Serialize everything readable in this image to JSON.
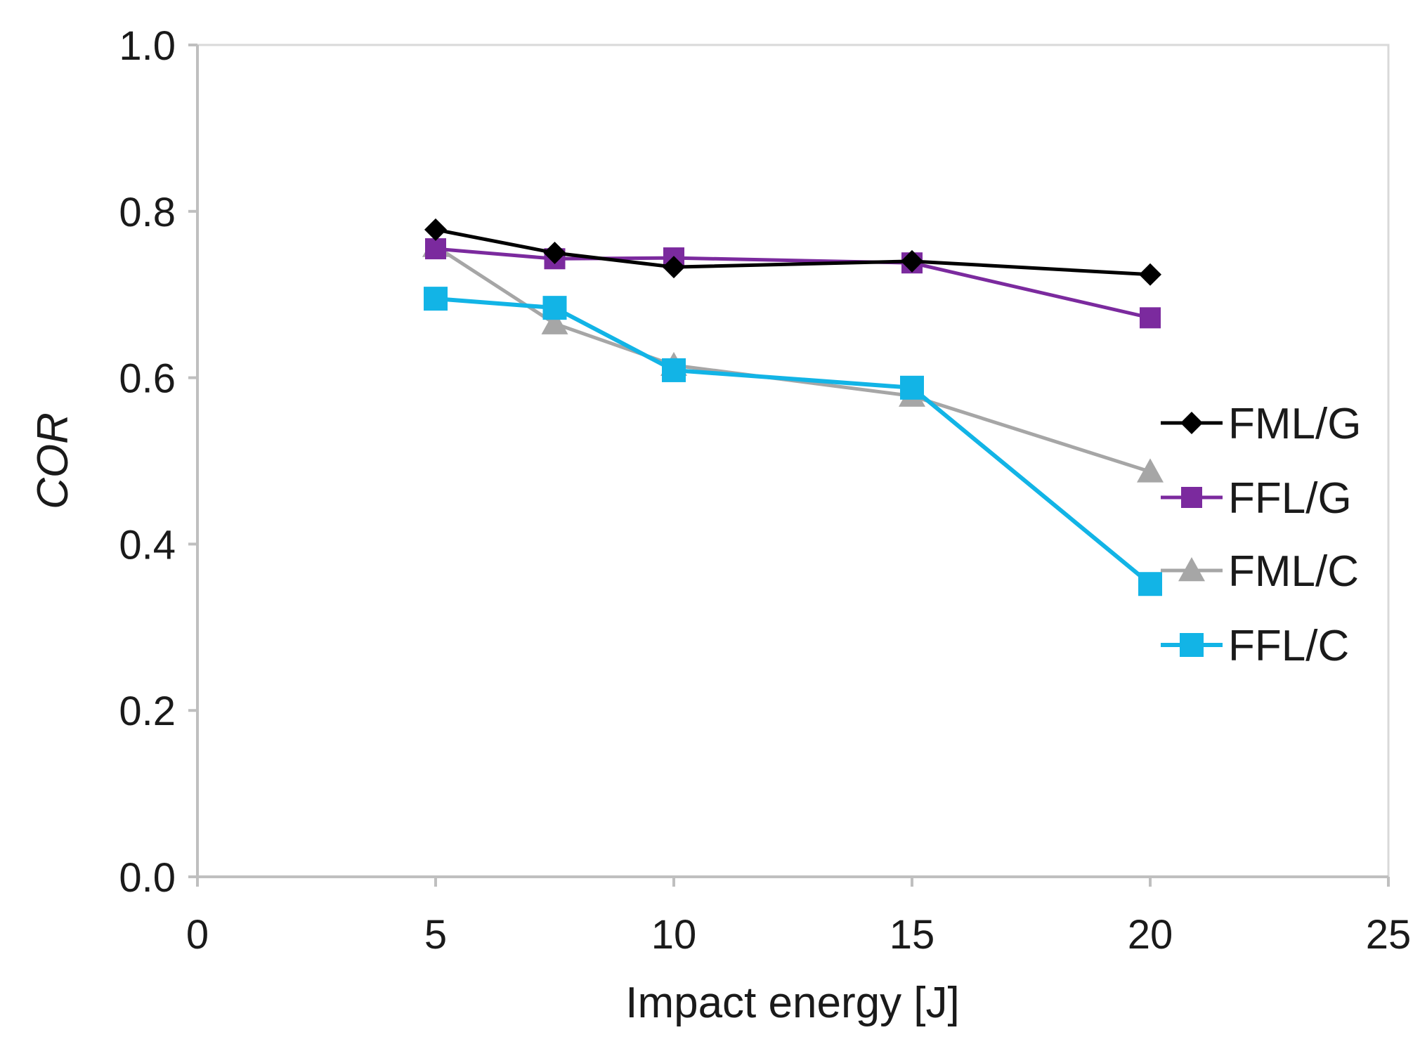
{
  "chart_data": {
    "type": "line",
    "title": "",
    "xlabel": "Impact energy [J]",
    "ylabel": "COR",
    "xlim": [
      0,
      25
    ],
    "ylim": [
      0,
      1.0
    ],
    "x_ticks": [
      "0",
      "5",
      "10",
      "15",
      "20",
      "25"
    ],
    "y_ticks": [
      "0.0",
      "0.2",
      "0.4",
      "0.6",
      "0.8",
      "1.0"
    ],
    "grid": false,
    "legend_position": "right",
    "series": [
      {
        "name": "FML/G",
        "color": "#000000",
        "marker": "diamond",
        "x": [
          5,
          7.5,
          10,
          15,
          20
        ],
        "y": [
          0.778,
          0.75,
          0.733,
          0.74,
          0.724
        ]
      },
      {
        "name": "FFL/G",
        "color": "#7b2a9e",
        "marker": "square",
        "x": [
          5,
          7.5,
          10,
          15,
          20
        ],
        "y": [
          0.755,
          0.743,
          0.744,
          0.738,
          0.672
        ]
      },
      {
        "name": "FML/C",
        "color": "#a6a6a6",
        "marker": "triangle",
        "x": [
          5,
          7.5,
          10,
          15,
          20
        ],
        "y": [
          0.758,
          0.665,
          0.615,
          0.578,
          0.487
        ]
      },
      {
        "name": "FFL/C",
        "color": "#12b4e6",
        "marker": "square-large",
        "x": [
          5,
          7.5,
          10,
          15,
          20
        ],
        "y": [
          0.695,
          0.684,
          0.609,
          0.588,
          0.352
        ]
      }
    ]
  }
}
